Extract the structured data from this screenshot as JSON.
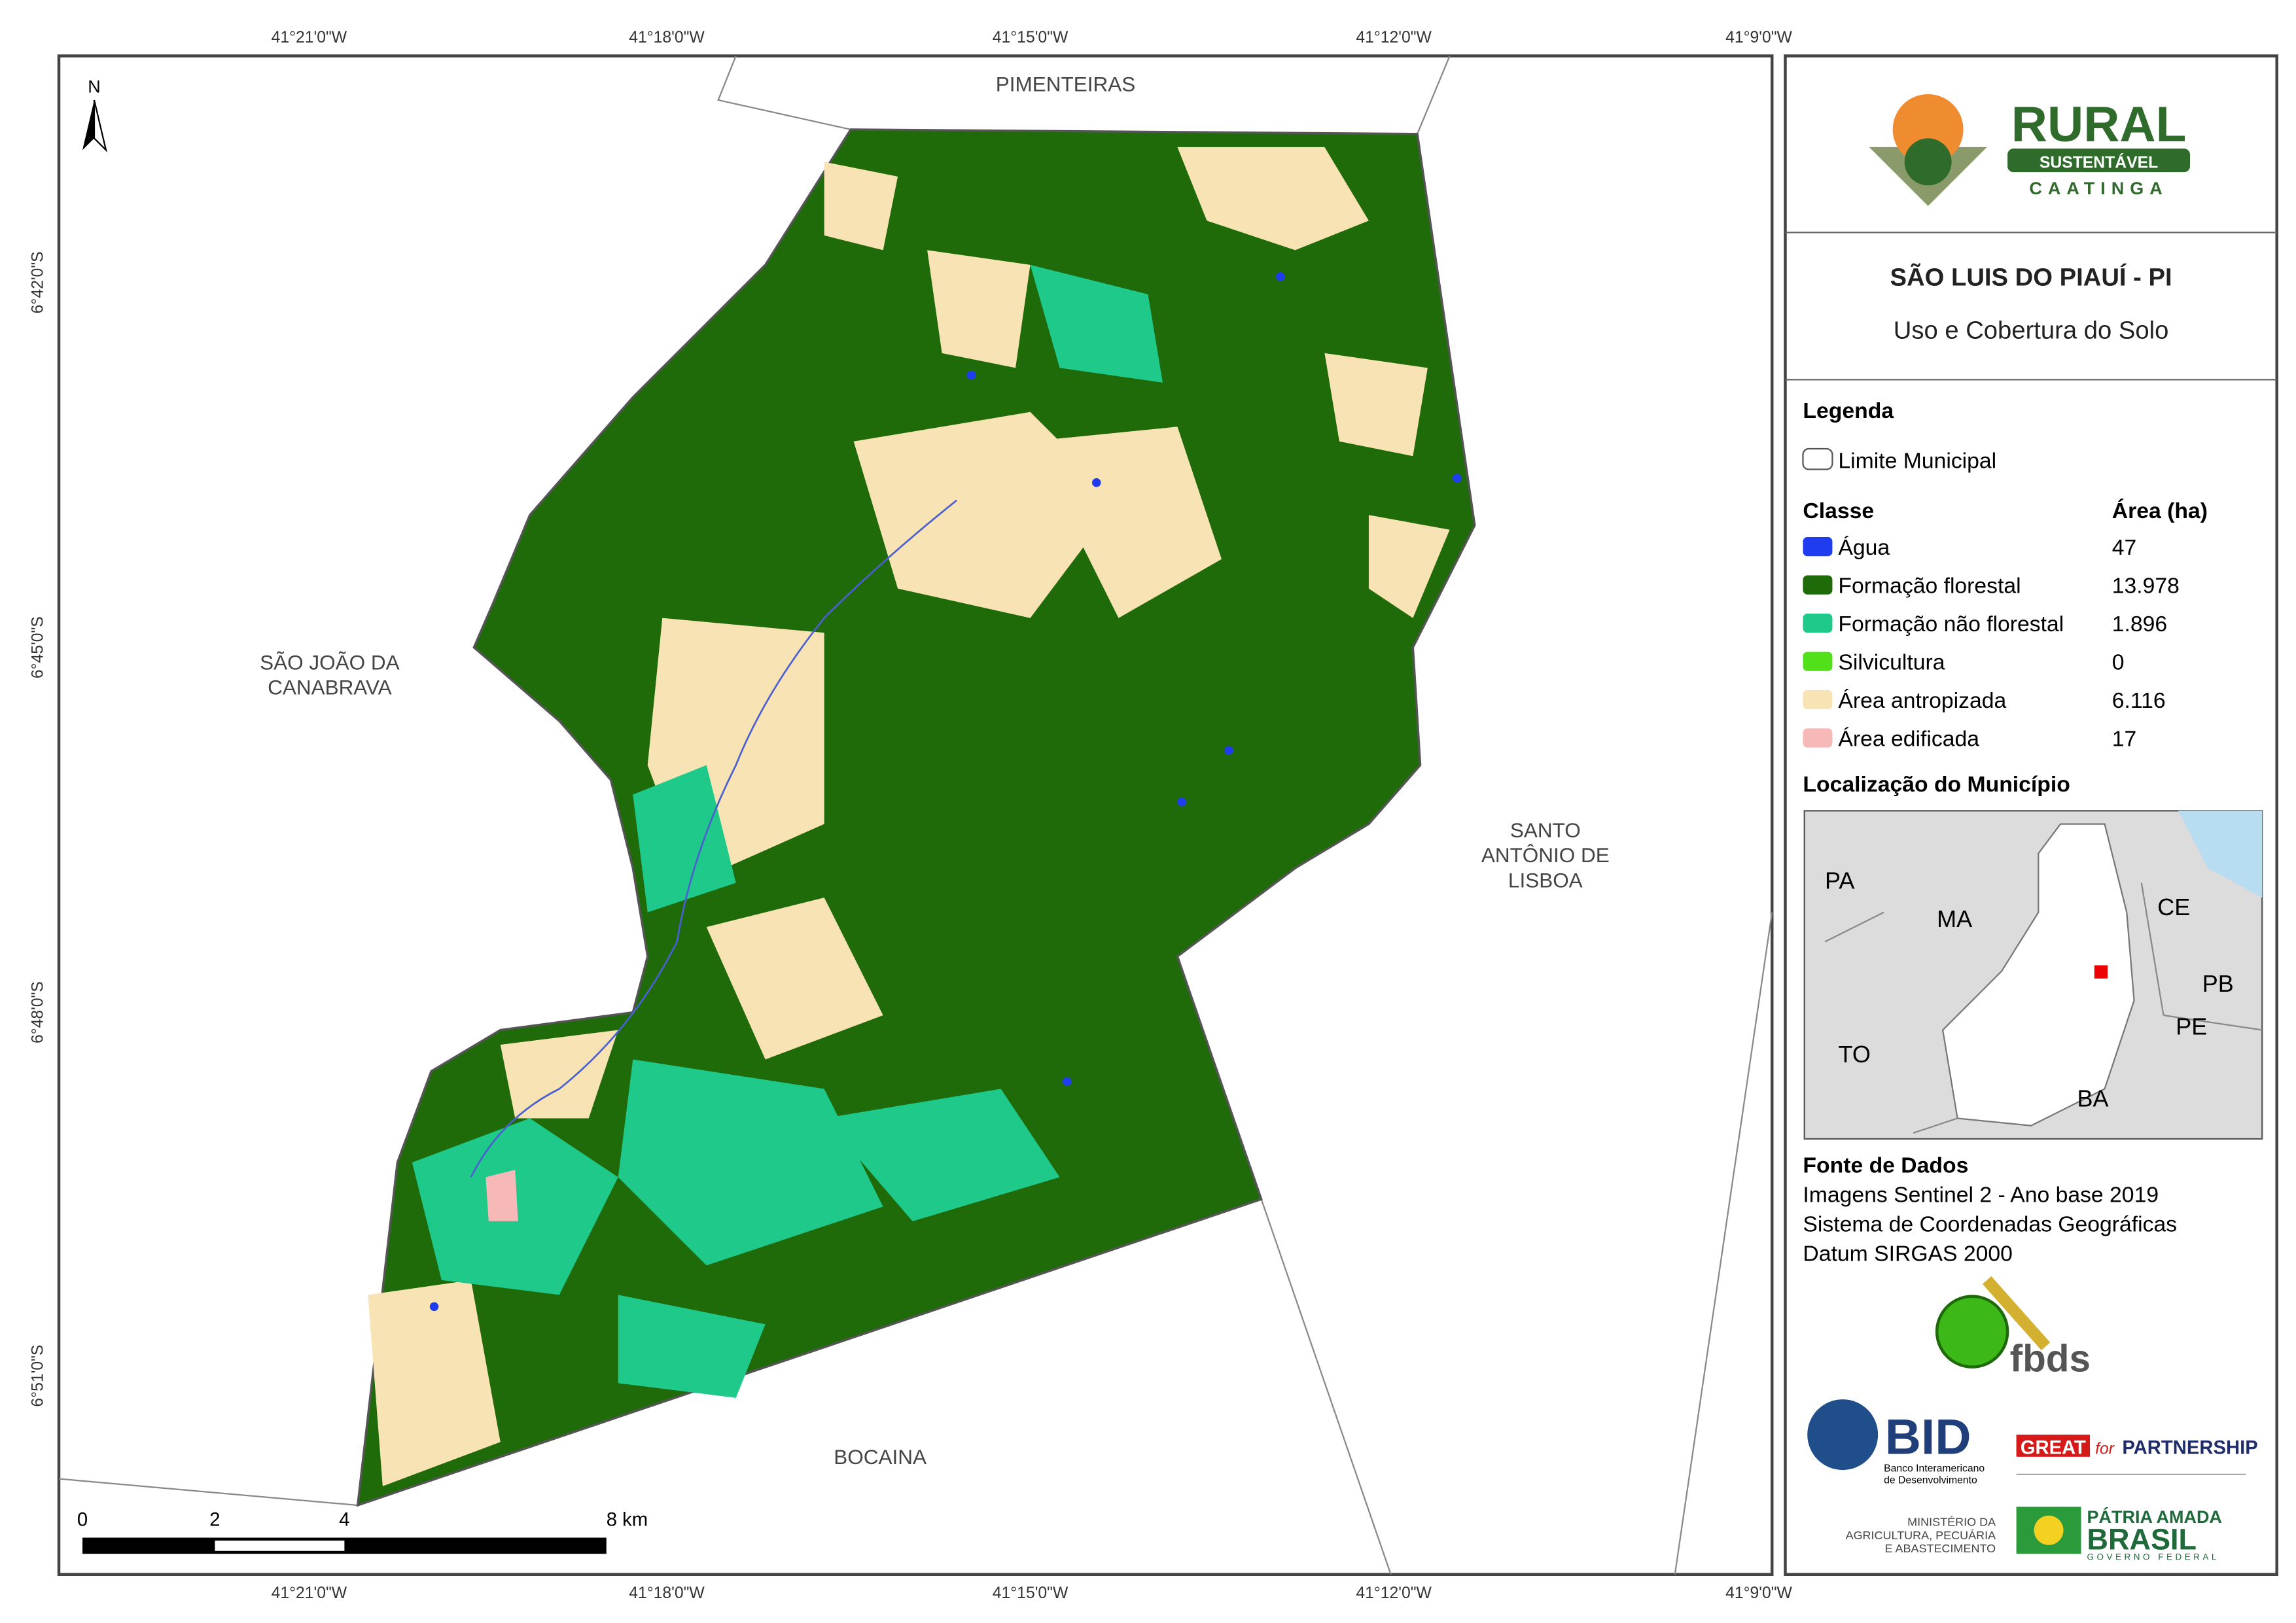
{
  "map": {
    "top_ticks": [
      "41°21'0\"W",
      "41°18'0\"W",
      "41°15'0\"W",
      "41°12'0\"W",
      "41°9'0\"W"
    ],
    "bottom_ticks": [
      "41°21'0\"W",
      "41°18'0\"W",
      "41°15'0\"W",
      "41°12'0\"W",
      "41°9'0\"W"
    ],
    "left_ticks": [
      "6°42'0\"S",
      "6°45'0\"S",
      "6°48'0\"S",
      "6°51'0\"S"
    ],
    "north": "N",
    "places": [
      {
        "lines": [
          "PIMENTEIRAS"
        ]
      },
      {
        "lines": [
          "SÃO JOÃO DA",
          "CANABRAVA"
        ]
      },
      {
        "lines": [
          "SANTO",
          "ANTÔNIO DE",
          "LISBOA"
        ]
      },
      {
        "lines": [
          "BOCAINA"
        ]
      }
    ],
    "scale": [
      "0",
      "2",
      "4",
      "8 km"
    ]
  },
  "logo": {
    "line1": "RURAL",
    "line2": "SUSTENTÁVEL",
    "line3": "CAATINGA"
  },
  "header": {
    "title": "SÃO LUIS DO PIAUÍ - PI",
    "subtitle": "Uso e Cobertura do Solo"
  },
  "legend": {
    "title": "Legenda",
    "boundary": "Limite Municipal",
    "class_header": "Classe",
    "area_header": "Área (ha)",
    "classes": [
      {
        "name": "Água",
        "area": "47",
        "color": "#1f3cf0"
      },
      {
        "name": "Formação florestal",
        "area": "13.978",
        "color": "#1f6b0a"
      },
      {
        "name": "Formação não florestal",
        "area": "1.896",
        "color": "#1ec98a"
      },
      {
        "name": "Silvicultura",
        "area": "0",
        "color": "#52e01a"
      },
      {
        "name": "Área antropizada",
        "area": "6.116",
        "color": "#f7e3b4"
      },
      {
        "name": "Área edificada",
        "area": "17",
        "color": "#f7b8b8"
      }
    ]
  },
  "location": {
    "title": "Localização do Município",
    "labels": [
      "PA",
      "MA",
      "CE",
      "PB",
      "PE",
      "TO",
      "BA"
    ]
  },
  "sources": {
    "title": "Fonte de Dados",
    "lines": [
      "Imagens Sentinel 2 - Ano base 2019",
      "Sistema de Coordenadas Geográficas",
      "Datum SIRGAS 2000"
    ]
  },
  "partners": {
    "fbds": "fbds",
    "bid": "BID",
    "bid_sub": [
      "Banco Interamericano",
      "de Desenvolvimento"
    ],
    "great": "GREAT",
    "great_for": "for",
    "great_partnership": "PARTNERSHIP",
    "ministry": [
      "MINISTÉRIO DA",
      "AGRICULTURA, PECUÁRIA",
      "E ABASTECIMENTO"
    ],
    "patria": "PÁTRIA AMADA",
    "brasil": "BRASIL",
    "governo": "GOVERNO FEDERAL"
  }
}
